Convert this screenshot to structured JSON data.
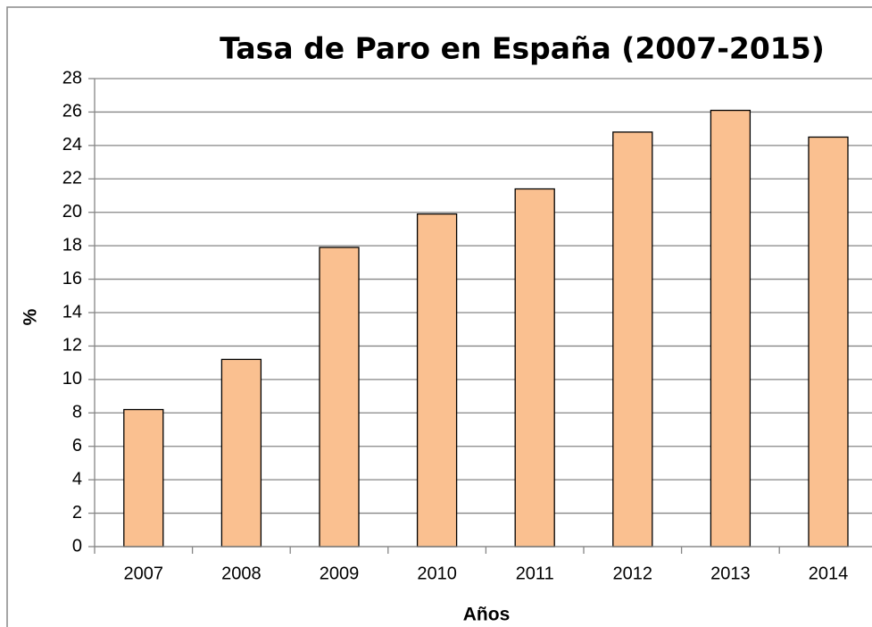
{
  "chart_data": {
    "type": "bar",
    "title": "Tasa de Paro en España (2007-2015)",
    "x_label": "Años",
    "y_label": "%",
    "categories": [
      "2007",
      "2008",
      "2009",
      "2010",
      "2011",
      "2012",
      "2013",
      "2014"
    ],
    "values": [
      8.2,
      11.2,
      17.9,
      19.9,
      21.4,
      24.8,
      26.1,
      24.5
    ],
    "color": "#fac090",
    "ylim": [
      0,
      28
    ],
    "yticks": [
      0,
      2,
      4,
      6,
      8,
      10,
      12,
      14,
      16,
      18,
      20,
      22,
      24,
      26,
      28
    ],
    "grid": true
  }
}
